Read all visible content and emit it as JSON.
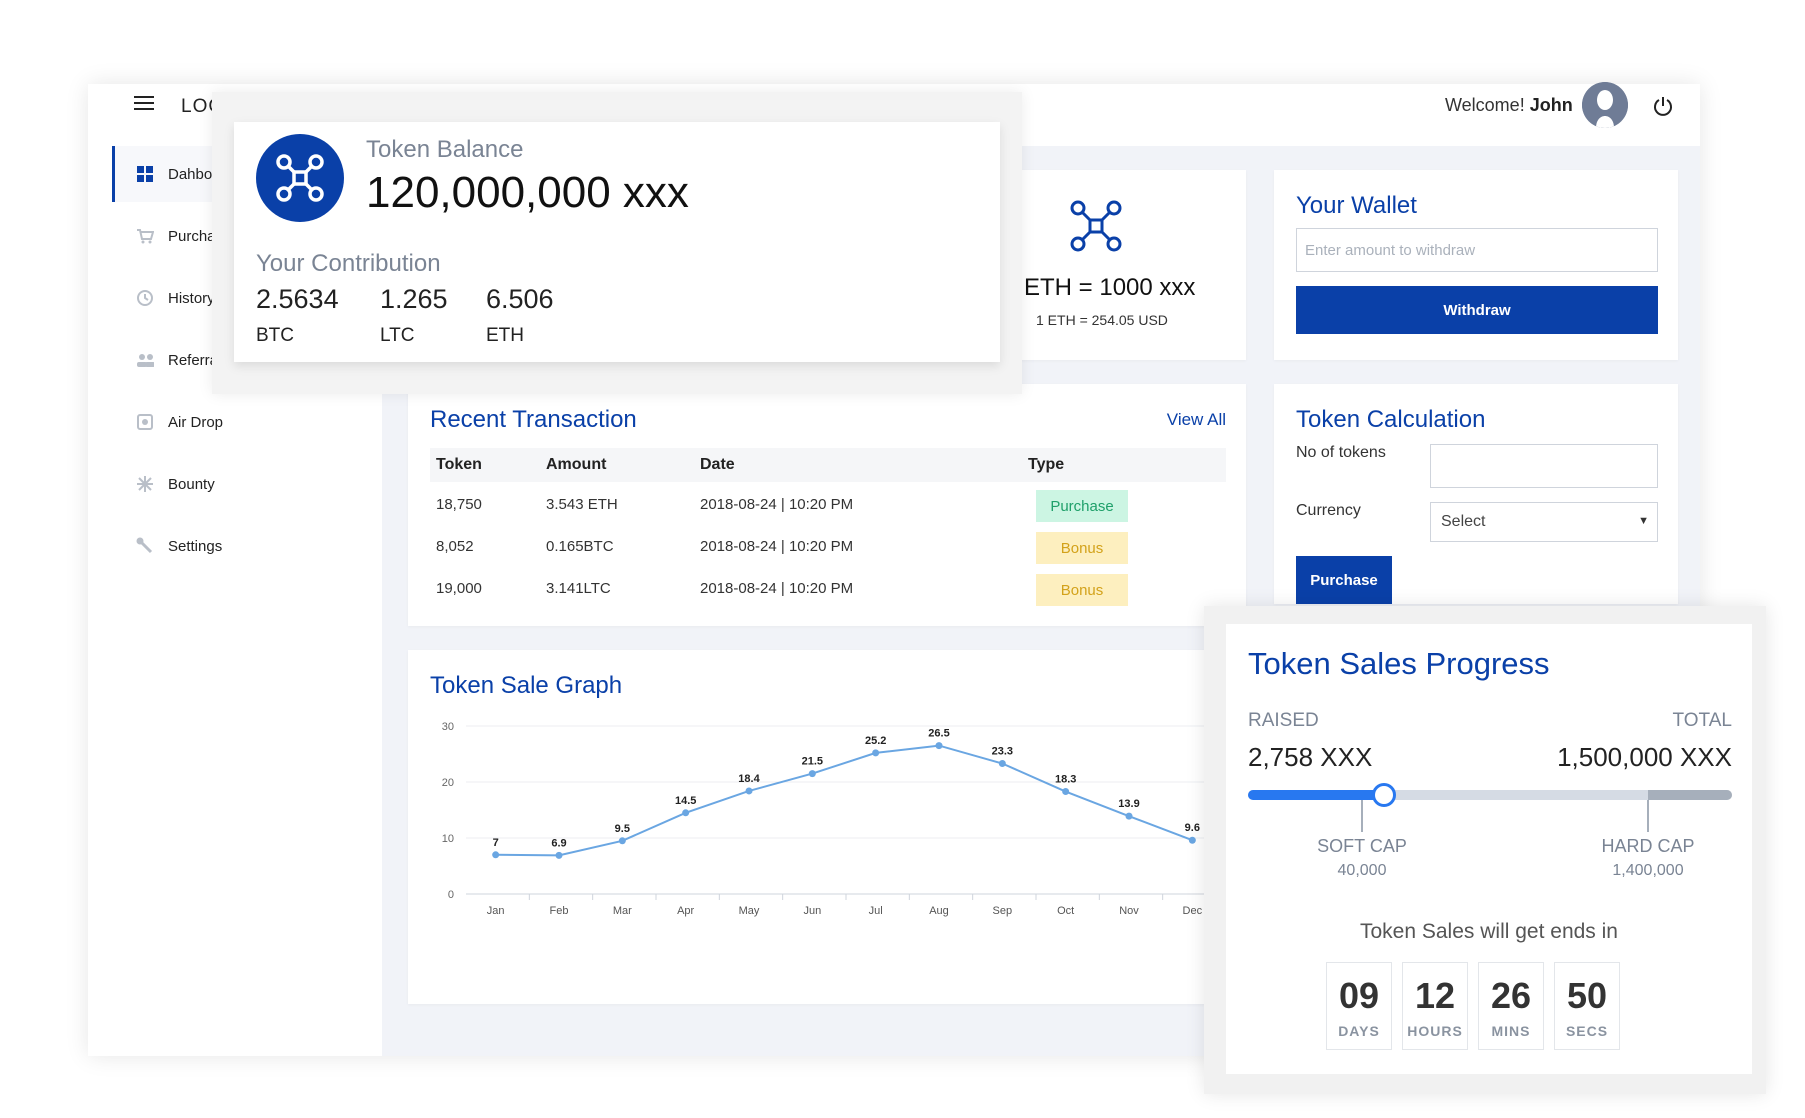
{
  "header": {
    "logo": "LOGO",
    "welcome_prefix": "Welcome!",
    "user_name": "John"
  },
  "sidebar": {
    "items": [
      {
        "label": "Dahboard",
        "icon": "dashboard-icon",
        "active": true
      },
      {
        "label": "Purchase",
        "icon": "cart-icon"
      },
      {
        "label": "History",
        "icon": "history-icon"
      },
      {
        "label": "Referral",
        "icon": "people-icon"
      },
      {
        "label": "Air Drop",
        "icon": "airdrop-icon"
      },
      {
        "label": "Bounty",
        "icon": "bounty-icon"
      },
      {
        "label": "Settings",
        "icon": "wrench-icon"
      }
    ]
  },
  "token_balance": {
    "label": "Token Balance",
    "value": "120,000,000 xxx",
    "contribution_label": "Your Contribution",
    "contributions": [
      {
        "value": "2.5634",
        "currency": "BTC"
      },
      {
        "value": "1.265",
        "currency": "LTC"
      },
      {
        "value": "6.506",
        "currency": "ETH"
      }
    ]
  },
  "eth_card": {
    "value": "ETH = 1000 xxx",
    "rate": "1 ETH = 254.05 USD"
  },
  "wallet": {
    "title": "Your Wallet",
    "placeholder": "Enter amount to withdraw",
    "button": "Withdraw"
  },
  "transactions": {
    "title": "Recent Transaction",
    "view_all": "View All",
    "headers": [
      "Token",
      "Amount",
      "Date",
      "Type"
    ],
    "rows": [
      {
        "token": "18,750",
        "amount": "3.543 ETH",
        "date": "2018-08-24 | 10:20 PM",
        "type": "Purchase"
      },
      {
        "token": "8,052",
        "amount": "0.165BTC",
        "date": "2018-08-24 | 10:20 PM",
        "type": "Bonus"
      },
      {
        "token": "19,000",
        "amount": "3.141LTC",
        "date": "2018-08-24 | 10:20 PM",
        "type": "Bonus"
      }
    ]
  },
  "calculation": {
    "title": "Token Calculation",
    "tokens_label": "No of tokens",
    "currency_label": "Currency",
    "currency_selected": "Select",
    "button": "Purchase"
  },
  "graph": {
    "title": "Token Sale Graph"
  },
  "chart_data": {
    "type": "line",
    "categories": [
      "Jan",
      "Feb",
      "Mar",
      "Apr",
      "May",
      "Jun",
      "Jul",
      "Aug",
      "Sep",
      "Oct",
      "Nov",
      "Dec"
    ],
    "values": [
      7,
      6.9,
      9.5,
      14.5,
      18.4,
      21.5,
      25.2,
      26.5,
      23.3,
      18.3,
      13.9,
      9.6
    ],
    "yticks": [
      0,
      10,
      20,
      30
    ],
    "ylim": [
      0,
      30
    ],
    "grid": true,
    "color": "#6aa6e2"
  },
  "sales_progress": {
    "title": "Token Sales Progress",
    "raised_label": "RAISED",
    "raised_value": "2,758 XXX",
    "total_label": "TOTAL",
    "total_value": "1,500,000 XXX",
    "progress_fraction": 0.28,
    "hardcap_fraction": 0.826,
    "soft_cap_label": "SOFT CAP",
    "soft_cap_value": "40,000",
    "hard_cap_label": "HARD CAP",
    "hard_cap_value": "1,400,000",
    "ends_text": "Token Sales will get ends in",
    "countdown": [
      {
        "value": "09",
        "unit": "DAYS"
      },
      {
        "value": "12",
        "unit": "HOURS"
      },
      {
        "value": "26",
        "unit": "MINS"
      },
      {
        "value": "50",
        "unit": "SECS"
      }
    ]
  }
}
